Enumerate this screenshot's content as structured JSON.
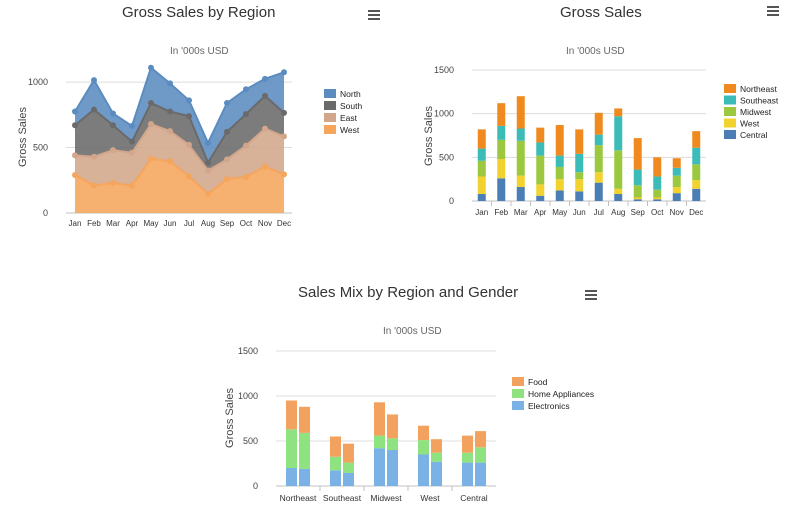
{
  "charts": [
    {
      "type": "area",
      "title": "Gross Sales by Region",
      "subtitle": "In '000s USD",
      "ylabel": "Gross Sales",
      "yticks": [
        "0",
        "500",
        "1000"
      ],
      "ylim": [
        0,
        1100
      ],
      "categories": [
        "Jan",
        "Feb",
        "Mar",
        "Apr",
        "May",
        "Jun",
        "Jul",
        "Aug",
        "Sep",
        "Oct",
        "Nov",
        "Dec"
      ],
      "series": [
        {
          "name": "North",
          "color": "#5b8cc0",
          "values": [
            105,
            225,
            90,
            120,
            270,
            215,
            120,
            150,
            220,
            190,
            130,
            310
          ]
        },
        {
          "name": "South",
          "color": "#6a6a6a",
          "values": [
            230,
            360,
            190,
            85,
            160,
            150,
            220,
            60,
            210,
            240,
            250,
            180
          ]
        },
        {
          "name": "East",
          "color": "#d2a68a",
          "values": [
            150,
            220,
            250,
            250,
            265,
            230,
            240,
            180,
            150,
            240,
            290,
            290
          ]
        },
        {
          "name": "West",
          "color": "#f5a55c",
          "values": [
            290,
            210,
            230,
            210,
            415,
            395,
            280,
            145,
            260,
            275,
            355,
            295
          ]
        }
      ],
      "legend_order": [
        "North",
        "South",
        "East",
        "West"
      ],
      "menu_icon": "hamburger-menu-icon"
    },
    {
      "type": "bar",
      "stacked": true,
      "title": "Gross Sales",
      "subtitle": "In '000s USD",
      "ylabel": "Gross Sales",
      "yticks": [
        "0",
        "500",
        "1000",
        "1500"
      ],
      "ylim": [
        0,
        1500
      ],
      "categories": [
        "Jan",
        "Feb",
        "Mar",
        "Apr",
        "May",
        "Jun",
        "Jul",
        "Aug",
        "Sep",
        "Oct",
        "Nov",
        "Dec"
      ],
      "series": [
        {
          "name": "Central",
          "color": "#4a7eb5",
          "values": [
            80,
            260,
            160,
            60,
            120,
            110,
            210,
            80,
            20,
            20,
            90,
            140
          ]
        },
        {
          "name": "West",
          "color": "#f2d22e",
          "values": [
            200,
            220,
            130,
            130,
            130,
            140,
            120,
            60,
            20,
            20,
            70,
            100
          ]
        },
        {
          "name": "Midwest",
          "color": "#9cc83f",
          "values": [
            180,
            220,
            400,
            330,
            140,
            80,
            310,
            440,
            140,
            90,
            130,
            180
          ]
        },
        {
          "name": "Southeast",
          "color": "#3cbcb8",
          "values": [
            140,
            160,
            140,
            150,
            130,
            210,
            120,
            390,
            180,
            150,
            90,
            190
          ]
        },
        {
          "name": "Northeast",
          "color": "#f08a1f",
          "values": [
            220,
            260,
            370,
            170,
            350,
            280,
            250,
            90,
            360,
            220,
            110,
            190
          ]
        }
      ],
      "legend_order": [
        "Northeast",
        "Southeast",
        "Midwest",
        "West",
        "Central"
      ],
      "menu_icon": "hamburger-menu-icon"
    },
    {
      "type": "bar",
      "stacked": true,
      "grouped": true,
      "title": "Sales Mix by Region and Gender",
      "subtitle": "In '000s USD",
      "ylabel": "Gross Sales",
      "yticks": [
        "0",
        "500",
        "1000",
        "1500"
      ],
      "ylim": [
        0,
        1500
      ],
      "categories": [
        "Northeast",
        "Southeast",
        "Midwest",
        "West",
        "Central"
      ],
      "bars_per_category": 2,
      "series": [
        {
          "name": "Electronics",
          "color": "#7ab2e6",
          "values": [
            200,
            190,
            175,
            145,
            420,
            400,
            350,
            270,
            260,
            260
          ]
        },
        {
          "name": "Home Appliances",
          "color": "#8ee27f",
          "values": [
            430,
            400,
            150,
            115,
            140,
            130,
            160,
            100,
            110,
            170
          ]
        },
        {
          "name": "Food",
          "color": "#f2a25e",
          "values": [
            320,
            290,
            225,
            210,
            370,
            265,
            160,
            150,
            190,
            180
          ]
        }
      ],
      "legend_order": [
        "Food",
        "Home Appliances",
        "Electronics"
      ],
      "menu_icon": "hamburger-menu-icon"
    }
  ]
}
